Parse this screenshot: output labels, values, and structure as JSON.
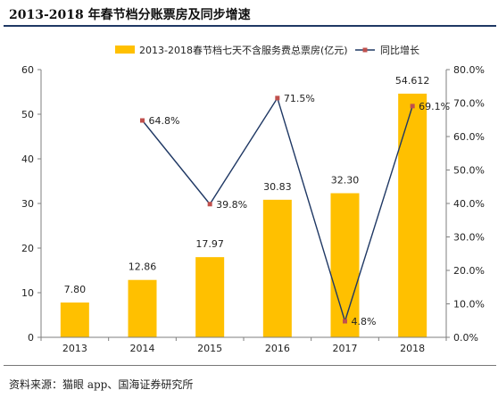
{
  "figure": {
    "title": "2013-2018 年春节档分账票房及同步增速",
    "source": "资料来源：猫眼 app、国海证券研究所"
  },
  "colors": {
    "bar": "#ffc000",
    "line": "#1f3864",
    "marker": "#c0504d",
    "axis": "#7f7f7f",
    "text": "#222222"
  },
  "chart_data": {
    "type": "bar",
    "title": "",
    "xlabel": "",
    "ylabel": "",
    "categories": [
      "2013",
      "2014",
      "2015",
      "2016",
      "2017",
      "2018"
    ],
    "ylim": [
      0,
      60
    ],
    "y_ticks": [
      "0",
      "10",
      "20",
      "30",
      "40",
      "50",
      "60"
    ],
    "y2lim": [
      0,
      80
    ],
    "y2_ticks": [
      "0.0%",
      "10.0%",
      "20.0%",
      "30.0%",
      "40.0%",
      "50.0%",
      "60.0%",
      "70.0%",
      "80.0%"
    ],
    "grid": false,
    "legend_position": "top",
    "series": [
      {
        "name": "2013-2018春节档七天不含服务费总票房(亿元)",
        "type": "bar",
        "axis": "left",
        "values": [
          7.8,
          12.86,
          17.97,
          30.83,
          32.3,
          54.612
        ],
        "labels": [
          "7.80",
          "12.86",
          "17.97",
          "30.83",
          "32.30",
          "54.612"
        ]
      },
      {
        "name": "同比增长",
        "type": "line",
        "axis": "right",
        "values": [
          null,
          64.8,
          39.8,
          71.5,
          4.8,
          69.1
        ],
        "labels": [
          "",
          "64.8%",
          "39.8%",
          "71.5%",
          "4.8%",
          "69.1%"
        ]
      }
    ]
  }
}
